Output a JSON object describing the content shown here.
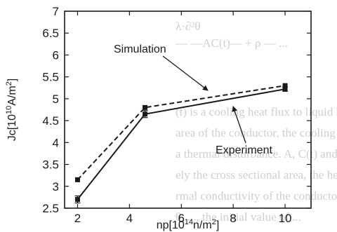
{
  "chart_data": {
    "type": "line",
    "x": [
      2,
      4.6,
      10
    ],
    "series": [
      {
        "name": "Simulation",
        "values": [
          3.15,
          4.8,
          5.3
        ],
        "style": "dashed",
        "marker": "square",
        "color": "#1a1a1a"
      },
      {
        "name": "Experiment",
        "values": [
          2.7,
          4.65,
          5.22
        ],
        "style": "solid",
        "marker": "square",
        "color": "#1a1a1a",
        "error": [
          0.08,
          0.08,
          0.05
        ]
      }
    ],
    "xlim": [
      1.5,
      11
    ],
    "ylim": [
      2.5,
      7
    ],
    "xticks": [
      "2",
      "4",
      "6",
      "8",
      "10"
    ],
    "yticks": [
      "2.5",
      "3",
      "3.5",
      "4",
      "4.5",
      "5",
      "5.5",
      "6",
      "6.5",
      "7"
    ],
    "xlabel": {
      "prefix": "np[10",
      "exp": "14",
      "unit": "n/m",
      "exp2": "2",
      "suffix": "]"
    },
    "ylabel": {
      "prefix": "Jc[10",
      "exp": "10",
      "unit": "A/m",
      "exp2": "2",
      "suffix": "]"
    },
    "annotations": [
      {
        "text": "Simulation",
        "points_to": "Simulation"
      },
      {
        "text": "Experiment",
        "points_to": "Experiment"
      }
    ],
    "grid": false
  },
  "background_text": [
    "λ·∂²θ",
    "— —AC(t)— + ρ — ...",
    "(t) is a cooling heat flux to liquid helium",
    "area of the conductor, the cooling perime",
    "a thermal disturbance. A, C(t) and k",
    "ely the cross sectional area, the heat capa",
    "rmal conductivity of the conductor. The",
    "θ, ..., the initial value of ..."
  ]
}
